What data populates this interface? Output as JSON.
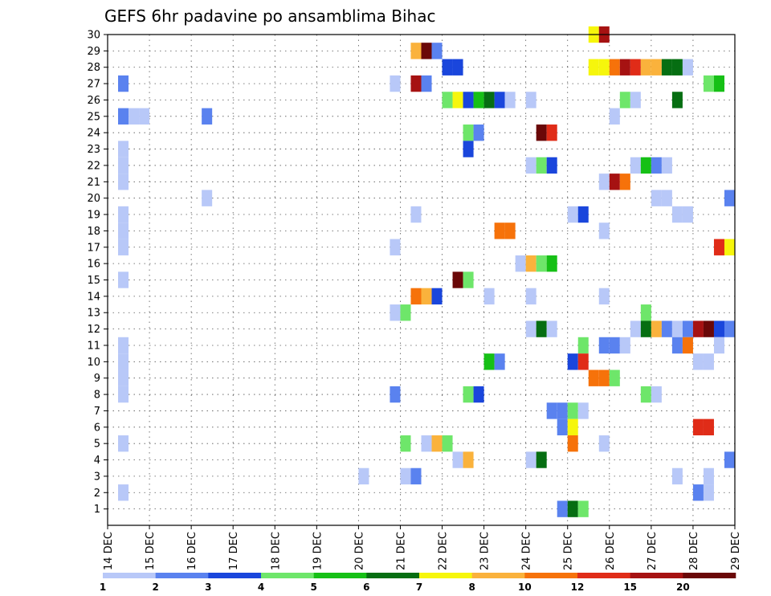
{
  "chart_data": {
    "type": "heatmap",
    "title": "GEFS 6hr padavine po ansamblima Bihac",
    "xlabel": "",
    "ylabel": "",
    "x_tick_labels": [
      "14 DEC",
      "15 DEC",
      "16 DEC",
      "17 DEC",
      "18 DEC",
      "19 DEC",
      "20 DEC",
      "21 DEC",
      "22 DEC",
      "23 DEC",
      "24 DEC",
      "25 DEC",
      "26 DEC",
      "27 DEC",
      "28 DEC",
      "29 DEC"
    ],
    "y_tick_labels": [
      "1",
      "2",
      "3",
      "4",
      "5",
      "6",
      "7",
      "8",
      "9",
      "10",
      "11",
      "12",
      "13",
      "14",
      "15",
      "16",
      "17",
      "18",
      "19",
      "20",
      "21",
      "22",
      "23",
      "24",
      "25",
      "26",
      "27",
      "28",
      "29",
      "30"
    ],
    "x_range_days": [
      0,
      15
    ],
    "y_range": [
      0,
      30
    ],
    "time_step_days": 0.25,
    "grid": true,
    "colorbar": {
      "labels": [
        "1",
        "2",
        "3",
        "4",
        "5",
        "6",
        "7",
        "8",
        "10",
        "12",
        "15",
        "20"
      ],
      "colors": [
        "#b8c8f8",
        "#5a82ef",
        "#1a46dc",
        "#6ee66a",
        "#16c016",
        "#066e12",
        "#f6f60c",
        "#fab23c",
        "#f6720a",
        "#e02c18",
        "#a61212",
        "#6a0808"
      ]
    },
    "cells": [
      [
        30,
        11.5,
        7
      ],
      [
        30,
        11.75,
        11
      ],
      [
        29,
        7.25,
        8
      ],
      [
        29,
        7.5,
        12
      ],
      [
        29,
        7.75,
        2
      ],
      [
        28,
        8,
        3
      ],
      [
        28,
        8.25,
        3
      ],
      [
        28,
        11.5,
        7
      ],
      [
        28,
        11.75,
        7
      ],
      [
        28,
        12,
        9
      ],
      [
        28,
        12.25,
        11
      ],
      [
        28,
        12.5,
        10
      ],
      [
        28,
        12.75,
        8
      ],
      [
        28,
        13,
        8
      ],
      [
        28,
        13.25,
        6
      ],
      [
        28,
        13.5,
        6
      ],
      [
        28,
        13.75,
        1
      ],
      [
        27,
        0.25,
        2
      ],
      [
        27,
        6.75,
        1
      ],
      [
        27,
        7.25,
        11
      ],
      [
        27,
        7.5,
        2
      ],
      [
        27,
        14.25,
        4
      ],
      [
        27,
        14.5,
        5
      ],
      [
        26,
        8,
        4
      ],
      [
        26,
        8.25,
        7
      ],
      [
        26,
        8.5,
        3
      ],
      [
        26,
        8.75,
        5
      ],
      [
        26,
        9,
        6
      ],
      [
        26,
        9.25,
        3
      ],
      [
        26,
        9.5,
        1
      ],
      [
        26,
        10,
        1
      ],
      [
        26,
        12.25,
        4
      ],
      [
        26,
        12.5,
        1
      ],
      [
        26,
        13.5,
        6
      ],
      [
        25,
        0.25,
        2
      ],
      [
        25,
        0.5,
        1
      ],
      [
        25,
        0.75,
        1
      ],
      [
        25,
        2.25,
        2
      ],
      [
        25,
        12,
        1
      ],
      [
        24,
        8.5,
        4
      ],
      [
        24,
        8.75,
        2
      ],
      [
        24,
        10.25,
        12
      ],
      [
        24,
        10.5,
        10
      ],
      [
        23,
        0.25,
        1
      ],
      [
        23,
        8.5,
        3
      ],
      [
        22,
        0.25,
        1
      ],
      [
        22,
        10,
        1
      ],
      [
        22,
        10.25,
        4
      ],
      [
        22,
        10.5,
        3
      ],
      [
        22,
        12.5,
        1
      ],
      [
        22,
        12.75,
        5
      ],
      [
        22,
        13,
        2
      ],
      [
        22,
        13.25,
        1
      ],
      [
        21,
        0.25,
        1
      ],
      [
        21,
        11.75,
        1
      ],
      [
        21,
        12,
        11
      ],
      [
        21,
        12.25,
        9
      ],
      [
        20,
        2.25,
        1
      ],
      [
        20,
        13,
        1
      ],
      [
        20,
        13.25,
        1
      ],
      [
        20,
        14.75,
        2
      ],
      [
        19,
        0.25,
        1
      ],
      [
        19,
        7.25,
        1
      ],
      [
        19,
        11,
        1
      ],
      [
        19,
        11.25,
        3
      ],
      [
        19,
        13.5,
        1
      ],
      [
        19,
        13.75,
        1
      ],
      [
        18,
        0.25,
        1
      ],
      [
        18,
        9.25,
        9
      ],
      [
        18,
        9.5,
        9
      ],
      [
        18,
        11.75,
        1
      ],
      [
        17,
        0.25,
        1
      ],
      [
        17,
        6.75,
        1
      ],
      [
        17,
        14.5,
        10
      ],
      [
        17,
        14.75,
        7
      ],
      [
        16,
        9.75,
        1
      ],
      [
        16,
        10,
        8
      ],
      [
        16,
        10.25,
        4
      ],
      [
        16,
        10.5,
        5
      ],
      [
        15,
        0.25,
        1
      ],
      [
        15,
        8.25,
        12
      ],
      [
        15,
        8.5,
        4
      ],
      [
        14,
        7.25,
        9
      ],
      [
        14,
        7.5,
        8
      ],
      [
        14,
        7.75,
        3
      ],
      [
        14,
        9,
        1
      ],
      [
        14,
        10,
        1
      ],
      [
        14,
        11.75,
        1
      ],
      [
        13,
        6.75,
        1
      ],
      [
        13,
        7,
        4
      ],
      [
        13,
        12.75,
        4
      ],
      [
        12,
        10,
        1
      ],
      [
        12,
        10.25,
        6
      ],
      [
        12,
        10.5,
        1
      ],
      [
        12,
        12.5,
        1
      ],
      [
        12,
        12.75,
        6
      ],
      [
        12,
        13,
        8
      ],
      [
        12,
        13.25,
        2
      ],
      [
        12,
        13.5,
        1
      ],
      [
        12,
        13.75,
        2
      ],
      [
        12,
        14,
        11
      ],
      [
        12,
        14.25,
        12
      ],
      [
        12,
        14.5,
        3
      ],
      [
        12,
        14.75,
        2
      ],
      [
        11,
        0.25,
        1
      ],
      [
        11,
        11.25,
        4
      ],
      [
        11,
        11.75,
        2
      ],
      [
        11,
        12,
        2
      ],
      [
        11,
        12.25,
        1
      ],
      [
        11,
        13.5,
        2
      ],
      [
        11,
        13.75,
        9
      ],
      [
        11,
        14.5,
        1
      ],
      [
        10,
        0.25,
        1
      ],
      [
        10,
        9,
        5
      ],
      [
        10,
        9.25,
        2
      ],
      [
        10,
        11,
        3
      ],
      [
        10,
        11.25,
        10
      ],
      [
        10,
        14,
        1
      ],
      [
        10,
        14.25,
        1
      ],
      [
        9,
        0.25,
        1
      ],
      [
        9,
        11.5,
        9
      ],
      [
        9,
        11.75,
        9
      ],
      [
        9,
        12,
        4
      ],
      [
        8,
        0.25,
        1
      ],
      [
        8,
        6.75,
        2
      ],
      [
        8,
        8.5,
        4
      ],
      [
        8,
        8.75,
        3
      ],
      [
        8,
        12.75,
        4
      ],
      [
        8,
        13,
        1
      ],
      [
        7,
        10.5,
        2
      ],
      [
        7,
        10.75,
        2
      ],
      [
        7,
        11,
        4
      ],
      [
        7,
        11.25,
        1
      ],
      [
        6,
        10.75,
        2
      ],
      [
        6,
        11,
        7
      ],
      [
        6,
        14,
        10
      ],
      [
        6,
        14.25,
        10
      ],
      [
        5,
        0.25,
        1
      ],
      [
        5,
        7,
        4
      ],
      [
        5,
        7.5,
        1
      ],
      [
        5,
        7.75,
        8
      ],
      [
        5,
        8,
        4
      ],
      [
        5,
        11,
        9
      ],
      [
        5,
        11.75,
        1
      ],
      [
        4,
        8.25,
        1
      ],
      [
        4,
        8.5,
        8
      ],
      [
        4,
        10,
        1
      ],
      [
        4,
        10.25,
        6
      ],
      [
        4,
        14.75,
        2
      ],
      [
        3,
        6,
        1
      ],
      [
        3,
        7,
        1
      ],
      [
        3,
        7.25,
        2
      ],
      [
        3,
        13.5,
        1
      ],
      [
        3,
        14.25,
        1
      ],
      [
        2,
        0.25,
        1
      ],
      [
        2,
        14,
        2
      ],
      [
        2,
        14.25,
        1
      ],
      [
        1,
        10.75,
        2
      ],
      [
        1,
        11,
        6
      ],
      [
        1,
        11.25,
        4
      ]
    ]
  }
}
